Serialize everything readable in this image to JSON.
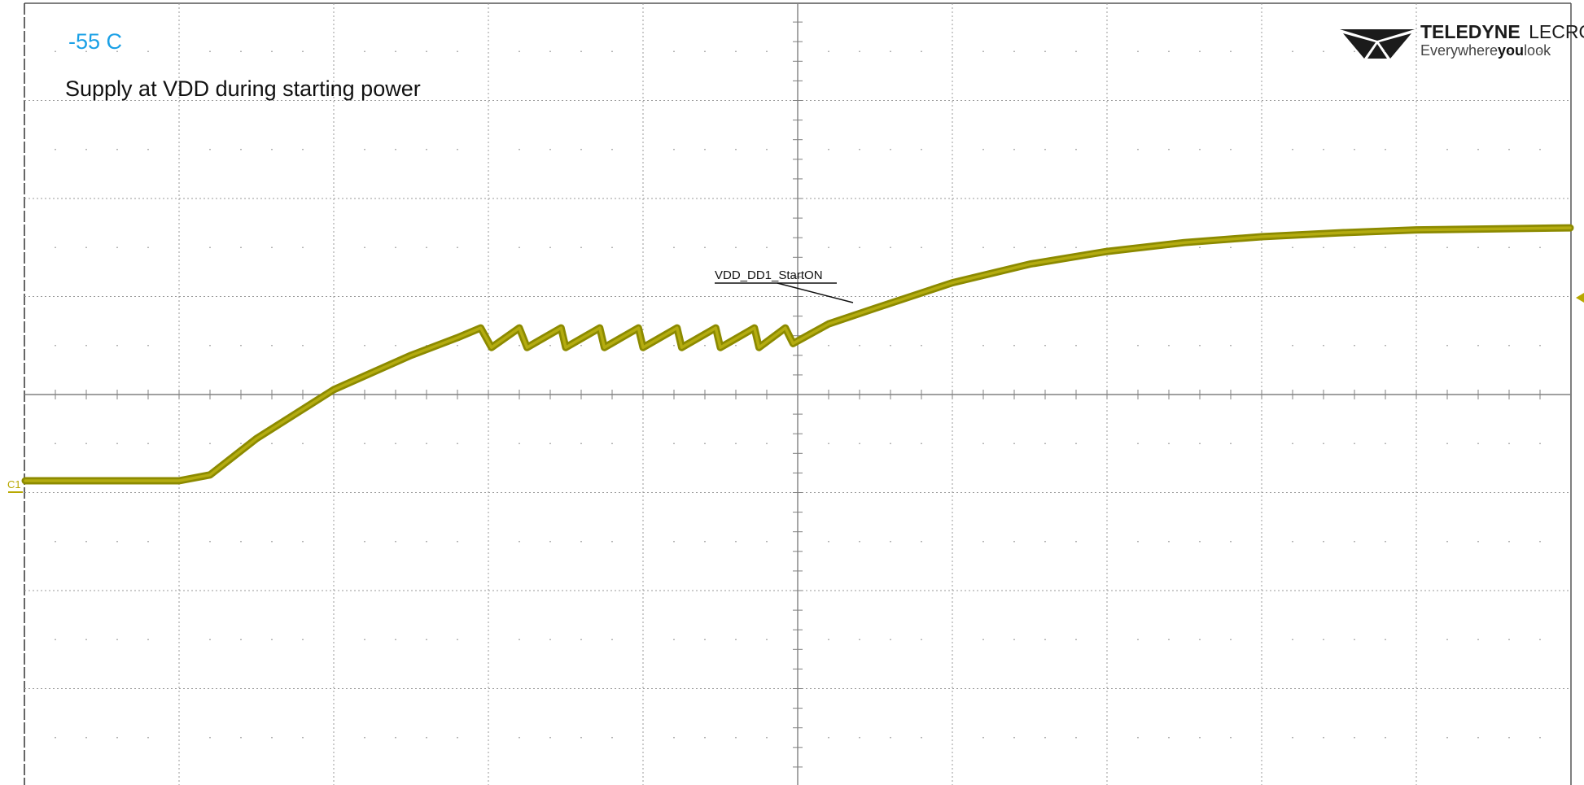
{
  "header": {
    "temperature_label": "-55 C",
    "subtitle": "Supply at VDD during starting power"
  },
  "logo": {
    "brand_bold": "TELEDYNE",
    "brand_light": "LECROY",
    "tagline_pre": "Everywhere",
    "tagline_bold": "you",
    "tagline_post": "look"
  },
  "channel": {
    "label": "C1",
    "color": "#8c8a00",
    "trace_color": "#8c8a00"
  },
  "annotation": {
    "label": "VDD_DD1_StartON"
  },
  "colors": {
    "grid": "#9a9a9a",
    "axis": "#808080",
    "temperature": "#1aa0e6"
  },
  "chart_data": {
    "type": "line",
    "title": "Supply at VDD during starting power",
    "xlabel": "",
    "ylabel": "",
    "grid": true,
    "xlim": [
      -5,
      5
    ],
    "ylim": [
      -4,
      4
    ],
    "x_unit": "divisions",
    "y_unit": "divisions",
    "series": [
      {
        "name": "",
        "x": [
          -5.0,
          -4.0,
          -3.8,
          -3.5,
          -3.0,
          -2.5,
          -2.2,
          -2.05,
          -1.98,
          -1.8,
          -1.75,
          -1.53,
          -1.5,
          -1.28,
          -1.25,
          -1.03,
          -1.0,
          -0.78,
          -0.75,
          -0.53,
          -0.5,
          -0.28,
          -0.25,
          -0.08,
          -0.03,
          0.2,
          0.5,
          1.0,
          1.5,
          2.0,
          2.5,
          3.0,
          3.5,
          4.0,
          4.5,
          5.0
        ],
        "y": [
          -0.88,
          -0.88,
          -0.82,
          -0.45,
          0.05,
          0.4,
          0.58,
          0.68,
          0.48,
          0.68,
          0.48,
          0.68,
          0.48,
          0.68,
          0.48,
          0.68,
          0.48,
          0.68,
          0.48,
          0.68,
          0.48,
          0.68,
          0.48,
          0.68,
          0.52,
          0.72,
          0.88,
          1.14,
          1.33,
          1.46,
          1.55,
          1.61,
          1.65,
          1.68,
          1.69,
          1.7
        ]
      }
    ]
  }
}
